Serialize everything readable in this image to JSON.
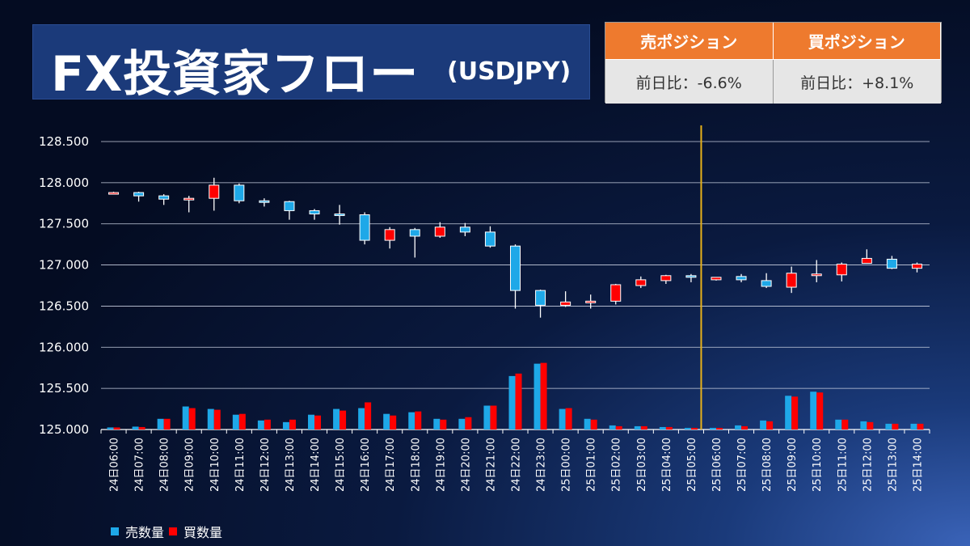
{
  "header": {
    "title": "FX投資家フロー",
    "pair": "(USDJPY)"
  },
  "positions": [
    {
      "label": "売ポジション",
      "value": "前日比：-6.6%"
    },
    {
      "label": "買ポジション",
      "value": "前日比：+8.1%"
    }
  ],
  "legend": [
    {
      "label": "売数量",
      "color": "#1ea8e8"
    },
    {
      "label": "買数量",
      "color": "#ff0000"
    }
  ],
  "colors": {
    "up_candle": "#ff0000",
    "down_candle": "#1ea8e8",
    "marker_line": "#e8b21a"
  },
  "chart_data": {
    "type": "candlestick",
    "ylim": [
      125.0,
      128.5
    ],
    "yticks": [
      "125.000",
      "125.500",
      "126.000",
      "126.500",
      "127.000",
      "127.500",
      "128.000",
      "128.500"
    ],
    "marker_at": "25日06:00",
    "categories": [
      "24日06:00",
      "24日07:00",
      "24日08:00",
      "24日09:00",
      "24日10:00",
      "24日11:00",
      "24日12:00",
      "24日13:00",
      "24日14:00",
      "24日15:00",
      "24日16:00",
      "24日17:00",
      "24日18:00",
      "24日19:00",
      "24日20:00",
      "24日21:00",
      "24日22:00",
      "24日23:00",
      "25日00:00",
      "25日01:00",
      "25日02:00",
      "25日03:00",
      "25日04:00",
      "25日05:00",
      "25日06:00",
      "25日07:00",
      "25日08:00",
      "25日09:00",
      "25日10:00",
      "25日11:00",
      "25日12:00",
      "25日13:00",
      "25日14:00"
    ],
    "ohlc": [
      [
        127.87,
        127.89,
        127.86,
        127.88
      ],
      [
        127.88,
        127.89,
        127.77,
        127.84
      ],
      [
        127.84,
        127.86,
        127.73,
        127.8
      ],
      [
        127.8,
        127.84,
        127.64,
        127.81
      ],
      [
        127.81,
        128.06,
        127.66,
        127.97
      ],
      [
        127.97,
        127.99,
        127.75,
        127.78
      ],
      [
        127.78,
        127.81,
        127.71,
        127.77
      ],
      [
        127.77,
        127.78,
        127.55,
        127.66
      ],
      [
        127.66,
        127.68,
        127.55,
        127.62
      ],
      [
        127.62,
        127.73,
        127.49,
        127.61
      ],
      [
        127.61,
        127.64,
        127.25,
        127.3
      ],
      [
        127.3,
        127.46,
        127.2,
        127.43
      ],
      [
        127.43,
        127.45,
        127.09,
        127.35
      ],
      [
        127.35,
        127.52,
        127.33,
        127.46
      ],
      [
        127.46,
        127.51,
        127.35,
        127.4
      ],
      [
        127.4,
        127.47,
        127.21,
        127.23
      ],
      [
        127.23,
        127.25,
        126.47,
        126.69
      ],
      [
        126.69,
        126.7,
        126.36,
        126.51
      ],
      [
        126.51,
        126.68,
        126.49,
        126.55
      ],
      [
        126.56,
        126.64,
        126.47,
        126.56
      ],
      [
        126.56,
        126.77,
        126.52,
        126.76
      ],
      [
        126.75,
        126.86,
        126.72,
        126.82
      ],
      [
        126.81,
        126.88,
        126.77,
        126.87
      ],
      [
        126.87,
        126.89,
        126.79,
        126.86
      ],
      [
        126.82,
        126.85,
        126.81,
        126.85
      ],
      [
        126.86,
        126.89,
        126.79,
        126.82
      ],
      [
        126.81,
        126.9,
        126.72,
        126.74
      ],
      [
        126.73,
        126.98,
        126.66,
        126.9
      ],
      [
        126.89,
        127.06,
        126.79,
        126.89
      ],
      [
        126.88,
        127.03,
        126.8,
        127.01
      ],
      [
        127.02,
        127.19,
        127.02,
        127.08
      ],
      [
        127.07,
        127.11,
        126.95,
        126.96
      ],
      [
        126.96,
        127.03,
        126.91,
        127.01
      ]
    ],
    "series": [
      {
        "name": "売数量",
        "values": [
          0.025,
          0.035,
          0.13,
          0.28,
          0.25,
          0.18,
          0.11,
          0.09,
          0.18,
          0.25,
          0.26,
          0.19,
          0.21,
          0.13,
          0.13,
          0.29,
          0.65,
          0.8,
          0.25,
          0.13,
          0.05,
          0.04,
          0.03,
          0.02,
          0.02,
          0.05,
          0.11,
          0.41,
          0.46,
          0.12,
          0.1,
          0.07,
          0.07
        ]
      },
      {
        "name": "買数量",
        "values": [
          0.025,
          0.03,
          0.13,
          0.26,
          0.24,
          0.19,
          0.12,
          0.12,
          0.17,
          0.23,
          0.33,
          0.17,
          0.22,
          0.12,
          0.15,
          0.29,
          0.68,
          0.81,
          0.26,
          0.12,
          0.04,
          0.04,
          0.03,
          0.02,
          0.02,
          0.04,
          0.1,
          0.4,
          0.45,
          0.12,
          0.09,
          0.07,
          0.07
        ]
      }
    ]
  }
}
